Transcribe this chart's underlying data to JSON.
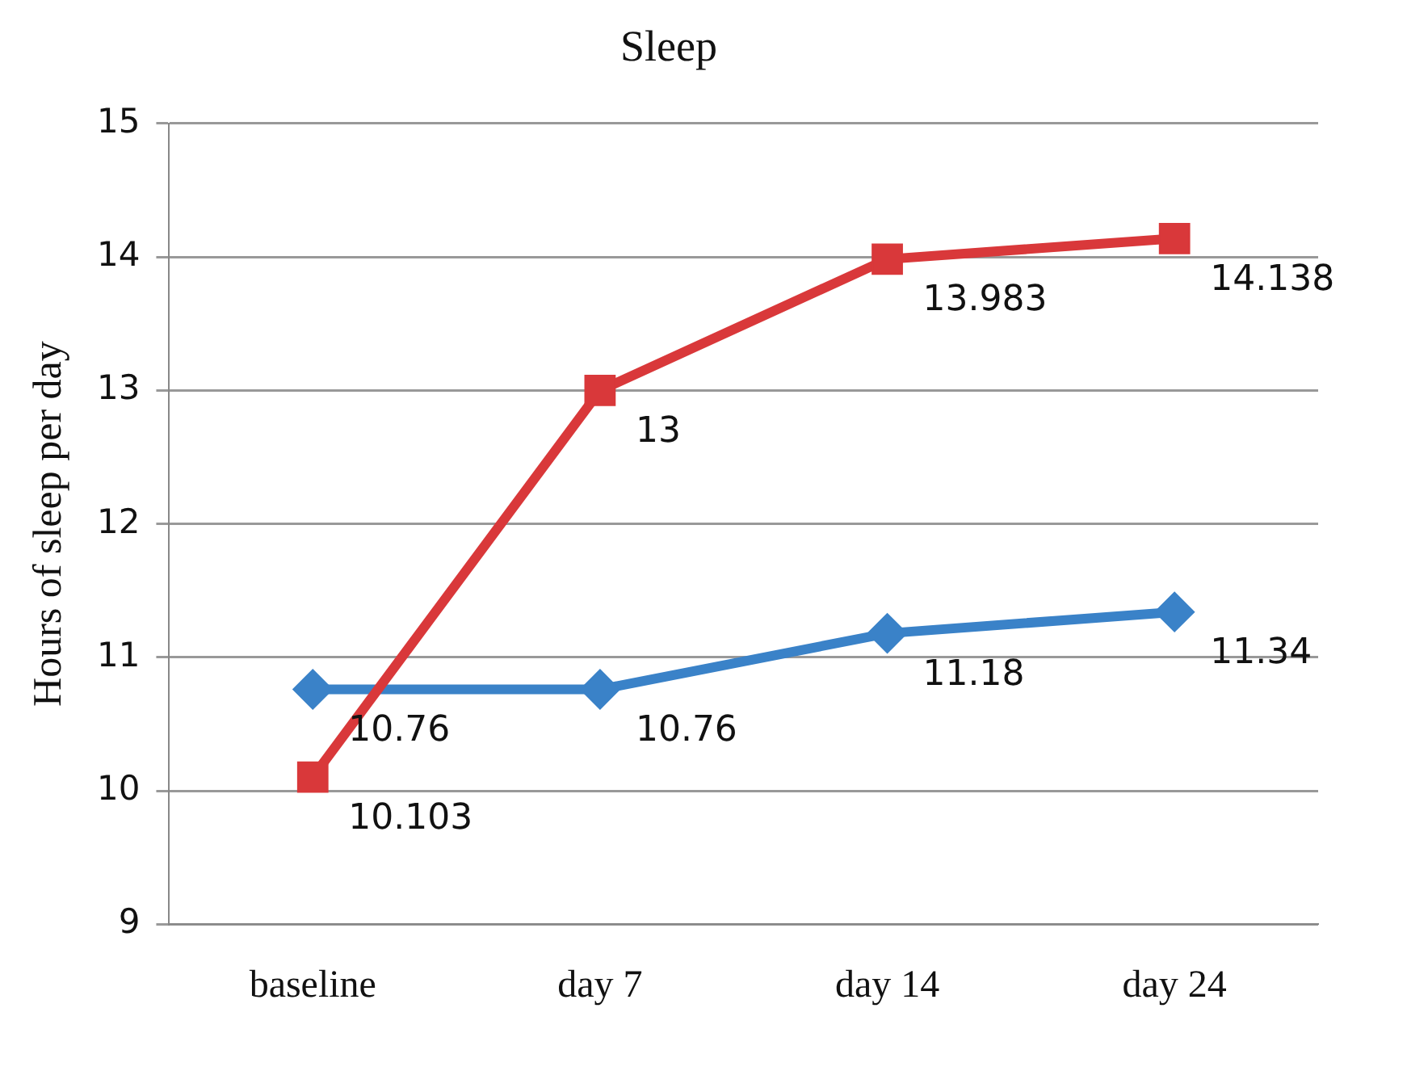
{
  "chart_data": {
    "type": "line",
    "title": "Sleep",
    "ylabel": "Hours of sleep per day",
    "categories": [
      "baseline",
      "day 7",
      "day 14",
      "day 24"
    ],
    "series": [
      {
        "color": "#d9383a",
        "values": [
          10.103,
          13,
          13.983,
          14.138
        ],
        "marker": "square"
      },
      {
        "color": "#3a82c8",
        "values": [
          10.76,
          10.76,
          11.18,
          11.34
        ],
        "marker": "diamond"
      }
    ],
    "ylim": [
      9,
      15
    ],
    "yticks": [
      9,
      10,
      11,
      12,
      13,
      14,
      15
    ],
    "grid": "y",
    "legend": false,
    "data_labels": true
  }
}
